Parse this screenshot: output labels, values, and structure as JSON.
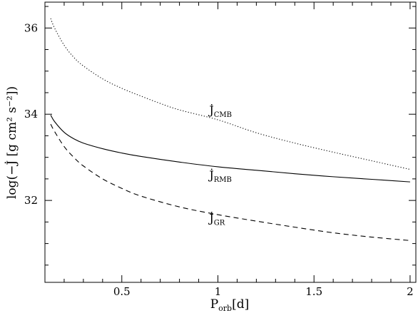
{
  "chart_data": {
    "type": "line",
    "xlabel": "P",
    "xlabel_sub": "orb",
    "xlabel_unit": "[d]",
    "ylabel": "log(−J̇ [g cm² s⁻²])",
    "xlim": [
      0.1,
      2.03
    ],
    "ylim": [
      30.1,
      36.6
    ],
    "x_ticks": [
      0.5,
      1,
      1.5,
      2
    ],
    "x_tick_labels": [
      "0.5",
      "1",
      "1.5",
      "2"
    ],
    "y_ticks": [
      32,
      34,
      36
    ],
    "y_tick_labels": [
      "32",
      "34",
      "36"
    ],
    "grid": false,
    "legend": "none",
    "series": [
      {
        "name": "J̇ CMB",
        "label": "J̇",
        "label_sub": "CMB",
        "style": "dotted",
        "x": [
          0.13,
          0.15,
          0.2,
          0.25,
          0.3,
          0.4,
          0.5,
          0.6,
          0.7,
          0.8,
          1.0,
          1.2,
          1.4,
          1.6,
          1.8,
          2.0
        ],
        "y": [
          36.22,
          36.0,
          35.6,
          35.32,
          35.12,
          34.82,
          34.6,
          34.42,
          34.25,
          34.1,
          33.87,
          33.57,
          33.33,
          33.12,
          32.92,
          32.72
        ]
      },
      {
        "name": "J̇ RMB",
        "label": "J̇",
        "label_sub": "RMB",
        "style": "solid",
        "x": [
          0.13,
          0.15,
          0.2,
          0.25,
          0.3,
          0.4,
          0.5,
          0.6,
          0.8,
          1.0,
          1.2,
          1.4,
          1.6,
          1.8,
          2.0
        ],
        "y": [
          33.98,
          33.83,
          33.58,
          33.43,
          33.33,
          33.2,
          33.1,
          33.02,
          32.89,
          32.78,
          32.7,
          32.62,
          32.55,
          32.49,
          32.43
        ]
      },
      {
        "name": "J̇ GR",
        "label": "J̇",
        "label_sub": "GR",
        "style": "dashed",
        "x": [
          0.13,
          0.15,
          0.2,
          0.25,
          0.3,
          0.4,
          0.5,
          0.6,
          0.8,
          1.0,
          1.2,
          1.4,
          1.6,
          1.8,
          2.0
        ],
        "y": [
          33.77,
          33.6,
          33.25,
          33.0,
          32.8,
          32.5,
          32.28,
          32.1,
          31.85,
          31.67,
          31.52,
          31.38,
          31.25,
          31.15,
          31.07
        ]
      }
    ],
    "annotations": [
      {
        "series": 0,
        "x": 0.955,
        "y": 34.0
      },
      {
        "series": 1,
        "x": 0.955,
        "y": 32.5
      },
      {
        "series": 2,
        "x": 0.955,
        "y": 31.5
      }
    ]
  }
}
